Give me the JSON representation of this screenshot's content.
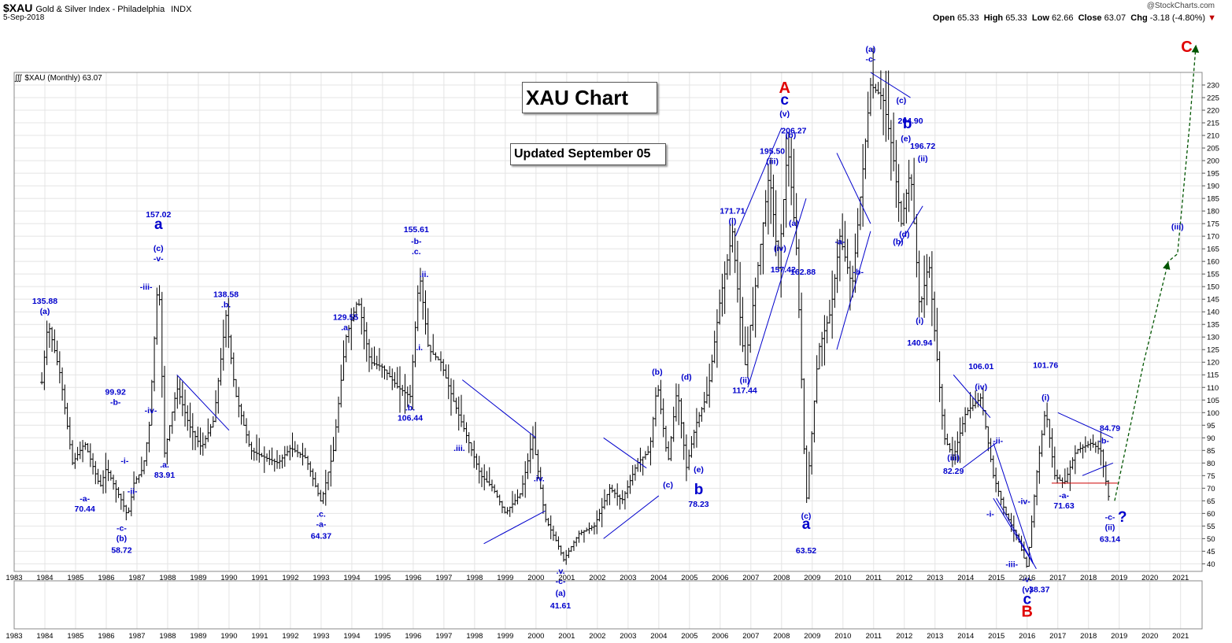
{
  "header": {
    "symbol": "$XAU",
    "index_name": "Gold & Silver Index - Philadelphia",
    "exchange": "INDX",
    "date": "5-Sep-2018",
    "copyright": "@StockCharts.com",
    "open_label": "Open",
    "open": "65.33",
    "high_label": "High",
    "high": "65.33",
    "low_label": "Low",
    "low": "62.66",
    "close_label": "Close",
    "close": "63.07",
    "chg_label": "Chg",
    "chg": "-3.18 (-4.80%)"
  },
  "plot_label": "$XAU (Monthly) 63.07",
  "title_box": "XAU Chart",
  "updated_box": "Updated September 05",
  "chart_data": {
    "type": "ohlc_monthly",
    "x_axis": {
      "min": 1983.0,
      "max": 2021.7,
      "ticks": [
        "1983",
        "1984",
        "1985",
        "1986",
        "1987",
        "1988",
        "1989",
        "1990",
        "1991",
        "1992",
        "1993",
        "1994",
        "1995",
        "1996",
        "1997",
        "1998",
        "1999",
        "2000",
        "2001",
        "2002",
        "2003",
        "2004",
        "2005",
        "2006",
        "2007",
        "2008",
        "2009",
        "2010",
        "2011",
        "2012",
        "2013",
        "2014",
        "2015",
        "2016",
        "2017",
        "2018",
        "2019",
        "2020",
        "2021"
      ]
    },
    "y_axis": {
      "min": 37,
      "max": 235,
      "side": "right",
      "ticks": [
        40,
        45,
        50,
        55,
        60,
        65,
        70,
        75,
        80,
        85,
        90,
        95,
        100,
        105,
        110,
        115,
        120,
        125,
        130,
        135,
        140,
        145,
        150,
        155,
        160,
        165,
        170,
        175,
        180,
        185,
        190,
        195,
        200,
        205,
        210,
        215,
        220,
        225,
        230
      ]
    },
    "colors": {
      "bars": "#000000",
      "labels": "#0000cc",
      "major": "#e00000",
      "projection": "#005500",
      "support": "#cc0000"
    },
    "price_path": [
      [
        1983.9,
        112
      ],
      [
        1984.1,
        135.88
      ],
      [
        1984.5,
        115
      ],
      [
        1984.9,
        80
      ],
      [
        1985.3,
        88
      ],
      [
        1985.8,
        70.44
      ],
      [
        1986.0,
        78
      ],
      [
        1986.3,
        70
      ],
      [
        1986.5,
        65
      ],
      [
        1986.7,
        58.72
      ],
      [
        1986.9,
        72
      ],
      [
        1987.2,
        78
      ],
      [
        1987.4,
        95
      ],
      [
        1987.7,
        157.02
      ],
      [
        1987.9,
        83.91
      ],
      [
        1988.3,
        110
      ],
      [
        1988.7,
        95
      ],
      [
        1989.1,
        86
      ],
      [
        1989.5,
        97
      ],
      [
        1989.9,
        138.58
      ],
      [
        1990.2,
        108
      ],
      [
        1990.7,
        85
      ],
      [
        1991.2,
        82
      ],
      [
        1991.6,
        80
      ],
      [
        1992.0,
        86
      ],
      [
        1992.5,
        82
      ],
      [
        1993.0,
        64.37
      ],
      [
        1993.4,
        85
      ],
      [
        1993.8,
        129.55
      ],
      [
        1994.2,
        145
      ],
      [
        1994.6,
        120
      ],
      [
        1995.0,
        118
      ],
      [
        1995.5,
        110
      ],
      [
        1995.9,
        106.44
      ],
      [
        1996.2,
        155.61
      ],
      [
        1996.5,
        125
      ],
      [
        1996.9,
        120
      ],
      [
        1997.3,
        105
      ],
      [
        1997.7,
        92
      ],
      [
        1998.2,
        75
      ],
      [
        1998.6,
        70
      ],
      [
        1999.0,
        60
      ],
      [
        1999.5,
        68
      ],
      [
        1999.9,
        90
      ],
      [
        2000.3,
        58
      ],
      [
        2000.7,
        48
      ],
      [
        2000.9,
        41.61
      ],
      [
        2001.4,
        52
      ],
      [
        2001.9,
        55
      ],
      [
        2002.4,
        70
      ],
      [
        2002.8,
        65
      ],
      [
        2003.3,
        80
      ],
      [
        2003.7,
        85
      ],
      [
        2003.95,
        112
      ],
      [
        2004.3,
        80
      ],
      [
        2004.6,
        110
      ],
      [
        2004.9,
        78.23
      ],
      [
        2005.2,
        95
      ],
      [
        2005.6,
        108
      ],
      [
        2006.0,
        145
      ],
      [
        2006.4,
        171.71
      ],
      [
        2006.8,
        117.44
      ],
      [
        2007.2,
        155
      ],
      [
        2007.6,
        195.5
      ],
      [
        2007.9,
        157.42
      ],
      [
        2008.2,
        206.27
      ],
      [
        2008.5,
        162.88
      ],
      [
        2008.8,
        63.52
      ],
      [
        2009.2,
        125
      ],
      [
        2009.6,
        140
      ],
      [
        2009.9,
        170
      ],
      [
        2010.3,
        150
      ],
      [
        2010.6,
        190
      ],
      [
        2010.9,
        230
      ],
      [
        2011.3,
        225
      ],
      [
        2011.6,
        204.9
      ],
      [
        2011.9,
        175
      ],
      [
        2012.2,
        196.72
      ],
      [
        2012.5,
        140.94
      ],
      [
        2012.8,
        160
      ],
      [
        2013.0,
        130
      ],
      [
        2013.3,
        90
      ],
      [
        2013.6,
        82.29
      ],
      [
        2014.0,
        100
      ],
      [
        2014.5,
        106.01
      ],
      [
        2014.9,
        75
      ],
      [
        2015.3,
        60
      ],
      [
        2015.7,
        50
      ],
      [
        2016.0,
        38.37
      ],
      [
        2016.3,
        75
      ],
      [
        2016.6,
        101.76
      ],
      [
        2016.9,
        75
      ],
      [
        2017.2,
        71.63
      ],
      [
        2017.6,
        85
      ],
      [
        2018.1,
        88
      ],
      [
        2018.4,
        84.79
      ],
      [
        2018.7,
        63.14
      ]
    ],
    "wave_labels": [
      {
        "text": "135.88",
        "x": 1984.0,
        "y": 136,
        "pos": "above2"
      },
      {
        "text": "(a)",
        "x": 1984.0,
        "y": 136,
        "pos": "above"
      },
      {
        "text": "-a-",
        "x": 1985.3,
        "y": 70.44,
        "pos": "below"
      },
      {
        "text": "70.44",
        "x": 1985.3,
        "y": 70.44,
        "pos": "below2"
      },
      {
        "text": "99.92",
        "x": 1986.3,
        "y": 100,
        "pos": "above2"
      },
      {
        "text": "-b-",
        "x": 1986.3,
        "y": 100,
        "pos": "above"
      },
      {
        "text": "-i-",
        "x": 1986.6,
        "y": 81,
        "pos": "center"
      },
      {
        "text": "-ii-",
        "x": 1986.85,
        "y": 69,
        "pos": "center"
      },
      {
        "text": "-c-",
        "x": 1986.5,
        "y": 58.72,
        "pos": "below"
      },
      {
        "text": "(b)",
        "x": 1986.5,
        "y": 58.72,
        "pos": "below2"
      },
      {
        "text": "58.72",
        "x": 1986.5,
        "y": 58.72,
        "pos": "below3"
      },
      {
        "text": "-iii-",
        "x": 1987.3,
        "y": 150,
        "pos": "center"
      },
      {
        "text": "-iv-",
        "x": 1987.45,
        "y": 101,
        "pos": "center"
      },
      {
        "text": "157.02",
        "x": 1987.7,
        "y": 157,
        "pos": "above5"
      },
      {
        "text": "a",
        "x": 1987.7,
        "y": 157,
        "pos": "above4",
        "big": true
      },
      {
        "text": "(c)",
        "x": 1987.7,
        "y": 157,
        "pos": "above2"
      },
      {
        "text": "-v-",
        "x": 1987.7,
        "y": 157,
        "pos": "above"
      },
      {
        "text": ".a.",
        "x": 1987.9,
        "y": 83.91,
        "pos": "below"
      },
      {
        "text": "83.91",
        "x": 1987.9,
        "y": 83.91,
        "pos": "below2"
      },
      {
        "text": "138.58",
        "x": 1989.9,
        "y": 138.58,
        "pos": "above2"
      },
      {
        "text": ".b.",
        "x": 1989.9,
        "y": 138.58,
        "pos": "above"
      },
      {
        "text": ".c.",
        "x": 1993.0,
        "y": 64.37,
        "pos": "below"
      },
      {
        "text": "-a-",
        "x": 1993.0,
        "y": 64.37,
        "pos": "below2"
      },
      {
        "text": "64.37",
        "x": 1993.0,
        "y": 64.37,
        "pos": "below3"
      },
      {
        "text": "129.55",
        "x": 1993.8,
        "y": 129.55,
        "pos": "above2"
      },
      {
        "text": ".a.",
        "x": 1993.8,
        "y": 129.55,
        "pos": "above"
      },
      {
        "text": ".b.",
        "x": 1995.9,
        "y": 106.44,
        "pos": "below"
      },
      {
        "text": "106.44",
        "x": 1995.9,
        "y": 106.44,
        "pos": "below2"
      },
      {
        "text": "155.61",
        "x": 1996.1,
        "y": 155.61,
        "pos": "above4"
      },
      {
        "text": "-b-",
        "x": 1996.1,
        "y": 155.61,
        "pos": "above3"
      },
      {
        "text": ".c.",
        "x": 1996.1,
        "y": 155.61,
        "pos": "above2"
      },
      {
        "text": ".ii.",
        "x": 1996.35,
        "y": 155,
        "pos": "center"
      },
      {
        "text": ".i.",
        "x": 1996.2,
        "y": 126,
        "pos": "center"
      },
      {
        "text": ".iii.",
        "x": 1997.5,
        "y": 86,
        "pos": "center"
      },
      {
        "text": ".iv.",
        "x": 2000.1,
        "y": 74,
        "pos": "center"
      },
      {
        "text": ".v.",
        "x": 2000.8,
        "y": 41.61,
        "pos": "below"
      },
      {
        "text": "-c-",
        "x": 2000.8,
        "y": 41.61,
        "pos": "below2"
      },
      {
        "text": "(a)",
        "x": 2000.8,
        "y": 41.61,
        "pos": "below3"
      },
      {
        "text": "41.61",
        "x": 2000.8,
        "y": 41.61,
        "pos": "below4"
      },
      {
        "text": "(b)",
        "x": 2003.95,
        "y": 112,
        "pos": "above"
      },
      {
        "text": "(c)",
        "x": 2004.3,
        "y": 80,
        "pos": "below2"
      },
      {
        "text": "(d)",
        "x": 2004.9,
        "y": 110,
        "pos": "above"
      },
      {
        "text": "(e)",
        "x": 2005.3,
        "y": 82,
        "pos": "below"
      },
      {
        "text": "b",
        "x": 2005.3,
        "y": 82,
        "pos": "below3",
        "big": true
      },
      {
        "text": "78.23",
        "x": 2005.3,
        "y": 82,
        "pos": "below4"
      },
      {
        "text": "171.71",
        "x": 2006.4,
        "y": 171.71,
        "pos": "above2"
      },
      {
        "text": "(i)",
        "x": 2006.4,
        "y": 171.71,
        "pos": "above"
      },
      {
        "text": "(ii)",
        "x": 2006.8,
        "y": 117.44,
        "pos": "below"
      },
      {
        "text": "117.44",
        "x": 2006.8,
        "y": 117.44,
        "pos": "below2"
      },
      {
        "text": "195.50",
        "x": 2007.7,
        "y": 195.5,
        "pos": "above2"
      },
      {
        "text": "(iii)",
        "x": 2007.7,
        "y": 195.5,
        "pos": "above"
      },
      {
        "text": "(iv)",
        "x": 2007.95,
        "y": 157,
        "pos": "above2"
      },
      {
        "text": "157.42",
        "x": 2008.05,
        "y": 157,
        "pos": "center"
      },
      {
        "text": "A",
        "x": 2008.1,
        "y": 206.27,
        "pos": "above5",
        "major": true
      },
      {
        "text": "c",
        "x": 2008.1,
        "y": 206.27,
        "pos": "above4",
        "big": true
      },
      {
        "text": "(v)",
        "x": 2008.1,
        "y": 206.27,
        "pos": "above3"
      },
      {
        "text": "206.27",
        "x": 2008.4,
        "y": 212,
        "pos": "center"
      },
      {
        "text": "(b)",
        "x": 2008.3,
        "y": 206,
        "pos": "above"
      },
      {
        "text": "(a)",
        "x": 2008.4,
        "y": 162.88,
        "pos": "above3"
      },
      {
        "text": "162.88",
        "x": 2008.7,
        "y": 156,
        "pos": "center"
      },
      {
        "text": "(c)",
        "x": 2008.8,
        "y": 63.52,
        "pos": "below"
      },
      {
        "text": "a",
        "x": 2008.8,
        "y": 63.52,
        "pos": "below2",
        "big": true
      },
      {
        "text": "63.52",
        "x": 2008.8,
        "y": 63.52,
        "pos": "below4"
      },
      {
        "text": "-a-",
        "x": 2009.9,
        "y": 168,
        "pos": "center"
      },
      {
        "text": "-b-",
        "x": 2010.5,
        "y": 156,
        "pos": "center"
      },
      {
        "text": "(a)",
        "x": 2010.9,
        "y": 232,
        "pos": "above5"
      },
      {
        "text": "-c-",
        "x": 2010.9,
        "y": 232,
        "pos": "above2"
      },
      {
        "text": "(c)",
        "x": 2011.9,
        "y": 224,
        "pos": "center"
      },
      {
        "text": "204.90",
        "x": 2012.2,
        "y": 216,
        "pos": "center"
      },
      {
        "text": "b",
        "x": 2012.1,
        "y": 214,
        "pos": "center",
        "big": true
      },
      {
        "text": "(e)",
        "x": 2012.05,
        "y": 209,
        "pos": "center"
      },
      {
        "text": "196.72",
        "x": 2012.6,
        "y": 206,
        "pos": "center"
      },
      {
        "text": "(ii)",
        "x": 2012.6,
        "y": 201,
        "pos": "center"
      },
      {
        "text": "(d)",
        "x": 2012.0,
        "y": 171,
        "pos": "center"
      },
      {
        "text": "(b)",
        "x": 2011.8,
        "y": 168,
        "pos": "center"
      },
      {
        "text": "(i)",
        "x": 2012.5,
        "y": 140.94,
        "pos": "below"
      },
      {
        "text": "140.94",
        "x": 2012.5,
        "y": 140.94,
        "pos": "below3"
      },
      {
        "text": "(iii)",
        "x": 2013.6,
        "y": 82.29,
        "pos": "center"
      },
      {
        "text": "82.29",
        "x": 2013.6,
        "y": 77,
        "pos": "center"
      },
      {
        "text": "106.01",
        "x": 2014.5,
        "y": 106.01,
        "pos": "above3"
      },
      {
        "text": "(iv)",
        "x": 2014.5,
        "y": 106.01,
        "pos": "above"
      },
      {
        "text": "-ii-",
        "x": 2015.05,
        "y": 89,
        "pos": "center"
      },
      {
        "text": "-i-",
        "x": 2014.8,
        "y": 60,
        "pos": "center"
      },
      {
        "text": "-iv-",
        "x": 2015.9,
        "y": 65,
        "pos": "center"
      },
      {
        "text": "-iii-",
        "x": 2015.5,
        "y": 40,
        "pos": "center"
      },
      {
        "text": "-v-",
        "x": 2016.0,
        "y": 38.37,
        "pos": "below"
      },
      {
        "text": "(v)",
        "x": 2016.0,
        "y": 38.37,
        "pos": "below2"
      },
      {
        "text": "c",
        "x": 2016.0,
        "y": 38.37,
        "pos": "below3",
        "big": true
      },
      {
        "text": "B",
        "x": 2016.0,
        "y": 38.37,
        "pos": "below4",
        "major": true
      },
      {
        "text": "38.37",
        "x": 2016.4,
        "y": 30,
        "pos": "center"
      },
      {
        "text": "101.76",
        "x": 2016.6,
        "y": 101.76,
        "pos": "above4"
      },
      {
        "text": "(i)",
        "x": 2016.6,
        "y": 101.76,
        "pos": "above"
      },
      {
        "text": "-a-",
        "x": 2017.2,
        "y": 71.63,
        "pos": "below"
      },
      {
        "text": "71.63",
        "x": 2017.2,
        "y": 71.63,
        "pos": "below2"
      },
      {
        "text": "84.79",
        "x": 2018.7,
        "y": 94,
        "pos": "center"
      },
      {
        "text": "-b-",
        "x": 2018.5,
        "y": 89,
        "pos": "center"
      },
      {
        "text": "-c-",
        "x": 2018.7,
        "y": 63.14,
        "pos": "below"
      },
      {
        "text": "(ii)",
        "x": 2018.7,
        "y": 63.14,
        "pos": "below2"
      },
      {
        "text": "63.14",
        "x": 2018.7,
        "y": 63.14,
        "pos": "below3"
      },
      {
        "text": "?",
        "x": 2019.1,
        "y": 58,
        "pos": "center",
        "big": true
      },
      {
        "text": "(iii)",
        "x": 2020.9,
        "y": 174,
        "pos": "center"
      },
      {
        "text": "C",
        "x": 2021.2,
        "y": 250,
        "pos": "center",
        "major": true
      }
    ],
    "trend_lines": [
      [
        [
          1988.3,
          115
        ],
        [
          1990.0,
          93
        ]
      ],
      [
        [
          1997.6,
          113
        ],
        [
          2000.0,
          90
        ]
      ],
      [
        [
          1998.3,
          48
        ],
        [
          2000.3,
          61
        ]
      ],
      [
        [
          2002.2,
          50
        ],
        [
          2004.0,
          67
        ]
      ],
      [
        [
          2002.2,
          90
        ],
        [
          2003.6,
          78
        ]
      ],
      [
        [
          2006.5,
          170
        ],
        [
          2008.0,
          213
        ]
      ],
      [
        [
          2006.9,
          110
        ],
        [
          2008.8,
          185
        ]
      ],
      [
        [
          2009.8,
          125
        ],
        [
          2010.9,
          172
        ]
      ],
      [
        [
          2009.8,
          203
        ],
        [
          2010.9,
          175
        ]
      ],
      [
        [
          2010.9,
          235
        ],
        [
          2012.2,
          225
        ]
      ],
      [
        [
          2011.8,
          166
        ],
        [
          2012.6,
          182
        ]
      ],
      [
        [
          2013.6,
          115
        ],
        [
          2014.8,
          98
        ]
      ],
      [
        [
          2013.9,
          78
        ],
        [
          2015.0,
          88
        ]
      ],
      [
        [
          2014.9,
          88
        ],
        [
          2016.2,
          40
        ]
      ],
      [
        [
          2014.9,
          66
        ],
        [
          2016.2,
          40
        ]
      ],
      [
        [
          2015.0,
          66
        ],
        [
          2016.3,
          38
        ]
      ],
      [
        [
          2017.0,
          100
        ],
        [
          2018.8,
          90
        ]
      ],
      [
        [
          2017.8,
          75
        ],
        [
          2018.8,
          80
        ]
      ]
    ],
    "support_line": {
      "y": 72,
      "x1": 2016.8,
      "x2": 2018.95
    },
    "projection": [
      [
        2018.85,
        65
      ],
      [
        2019.8,
        120
      ],
      [
        2020.6,
        160
      ],
      [
        2020.9,
        163
      ],
      [
        2021.3,
        215
      ],
      [
        2021.5,
        246
      ]
    ]
  }
}
